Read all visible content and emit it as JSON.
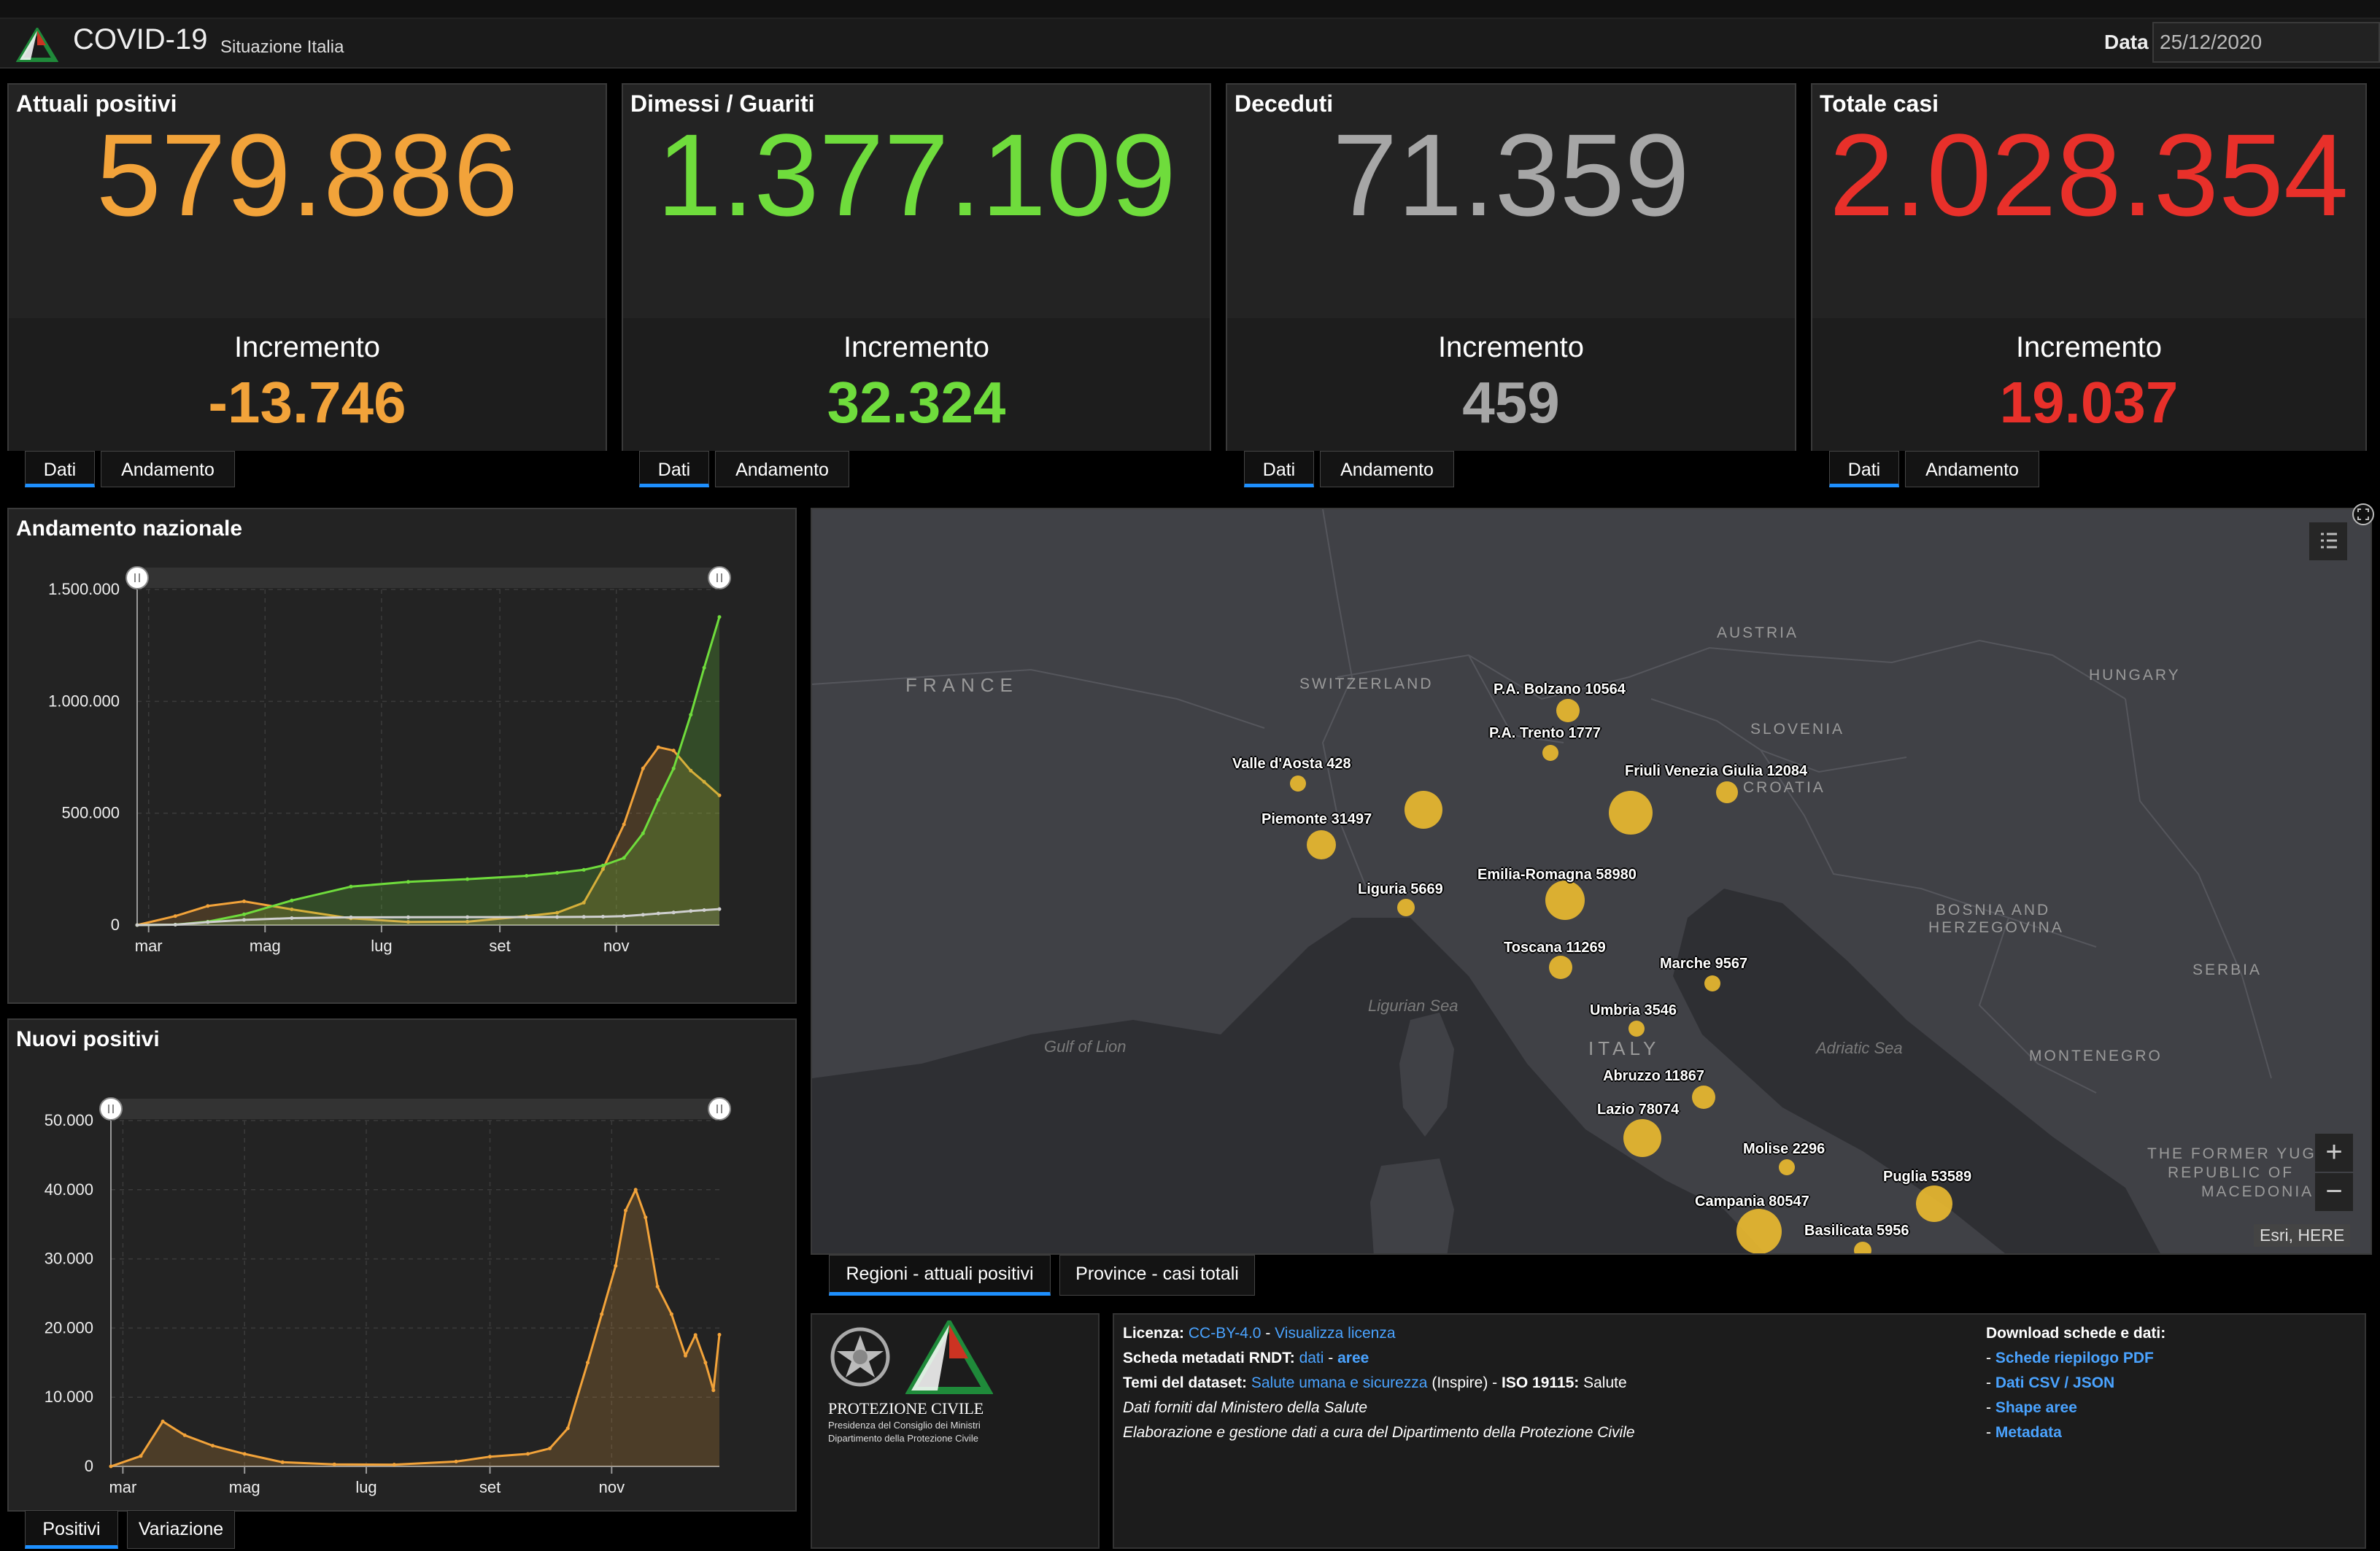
{
  "header": {
    "title": "COVID-19",
    "subtitle": "Situazione Italia",
    "date_label": "Data",
    "date_value": "25/12/2020"
  },
  "kpis": [
    {
      "title": "Attuali positivi",
      "value": "579.886",
      "inc_label": "Incremento",
      "inc_value": "-13.746",
      "color": "#f2a33a"
    },
    {
      "title": "Dimessi / Guariti",
      "value": "1.377.109",
      "inc_label": "Incremento",
      "inc_value": "32.324",
      "color": "#6fdc3c"
    },
    {
      "title": "Deceduti",
      "value": "71.359",
      "inc_label": "Incremento",
      "inc_value": "459",
      "color": "#a6a6a6"
    },
    {
      "title": "Totale casi",
      "value": "2.028.354",
      "inc_label": "Incremento",
      "inc_value": "19.037",
      "color": "#e8302a"
    }
  ],
  "kpi_tabs": [
    "Dati",
    "Andamento"
  ],
  "national_chart": {
    "title": "Andamento nazionale",
    "yticks": [
      "1.500.000",
      "1.000.000",
      "500.000",
      "0"
    ],
    "xticks": [
      "mar",
      "mag",
      "lug",
      "set",
      "nov"
    ]
  },
  "new_chart": {
    "title": "Nuovi positivi",
    "yticks": [
      "50.000",
      "40.000",
      "30.000",
      "20.000",
      "10.000",
      "0"
    ],
    "xticks": [
      "mar",
      "mag",
      "lug",
      "set",
      "nov"
    ],
    "tabs": [
      "Positivi",
      "Variazione"
    ]
  },
  "chart_data": [
    {
      "type": "line",
      "title": "Andamento nazionale",
      "ylim": [
        0,
        1500000
      ],
      "x": [
        "2020-02-24",
        "2020-03-15",
        "2020-04-01",
        "2020-04-20",
        "2020-05-15",
        "2020-06-15",
        "2020-07-15",
        "2020-08-15",
        "2020-09-15",
        "2020-10-01",
        "2020-10-15",
        "2020-10-25",
        "2020-11-05",
        "2020-11-15",
        "2020-11-23",
        "2020-12-01",
        "2020-12-10",
        "2020-12-17",
        "2020-12-25"
      ],
      "series": [
        {
          "color": "#f2a33a",
          "values": [
            0,
            40000,
            85000,
            106000,
            70000,
            30000,
            14000,
            15000,
            40000,
            55000,
            100000,
            250000,
            450000,
            700000,
            795000,
            780000,
            690000,
            640000,
            579886
          ]
        },
        {
          "color": "#6fdc3c",
          "values": [
            0,
            2000,
            15000,
            48000,
            110000,
            172000,
            193000,
            205000,
            220000,
            233000,
            247000,
            266000,
            300000,
            410000,
            560000,
            700000,
            940000,
            1150000,
            1377109
          ]
        },
        {
          "color": "#cfcfcf",
          "values": [
            0,
            1500,
            13000,
            23000,
            31000,
            34500,
            35000,
            35400,
            35700,
            36000,
            36500,
            37500,
            40000,
            46000,
            52000,
            56000,
            63000,
            67000,
            71359
          ]
        }
      ]
    },
    {
      "type": "area",
      "title": "Nuovi positivi",
      "ylim": [
        0,
        50000
      ],
      "x": [
        "2020-02-24",
        "2020-03-10",
        "2020-03-21",
        "2020-04-01",
        "2020-04-15",
        "2020-05-01",
        "2020-05-20",
        "2020-06-15",
        "2020-07-15",
        "2020-08-15",
        "2020-09-01",
        "2020-09-20",
        "2020-10-01",
        "2020-10-10",
        "2020-10-20",
        "2020-10-27",
        "2020-11-03",
        "2020-11-08",
        "2020-11-13",
        "2020-11-18",
        "2020-11-24",
        "2020-12-01",
        "2020-12-08",
        "2020-12-13",
        "2020-12-18",
        "2020-12-22",
        "2020-12-25"
      ],
      "series": [
        {
          "color": "#f2a33a",
          "values": [
            0,
            1500,
            6500,
            4500,
            3000,
            1800,
            600,
            300,
            250,
            700,
            1400,
            1800,
            2600,
            5500,
            15000,
            22000,
            29000,
            37000,
            40000,
            36000,
            26000,
            22000,
            16000,
            19000,
            15000,
            11000,
            19037
          ]
        }
      ]
    }
  ],
  "map": {
    "countries": [
      {
        "name": "FRANCE"
      },
      {
        "name": "SWITZERLAND"
      },
      {
        "name": "AUSTRIA"
      },
      {
        "name": "HUNGARY"
      },
      {
        "name": "SLOVENIA"
      },
      {
        "name": "CROATIA"
      },
      {
        "name": "BOSNIA AND"
      },
      {
        "name": "HERZEGOVINA"
      },
      {
        "name": "SERBIA"
      },
      {
        "name": "MONTENEGRO"
      },
      {
        "name": "ITALY"
      },
      {
        "name": "THE FORMER YUGO"
      },
      {
        "name": "REPUBLIC OF"
      },
      {
        "name": "MACEDONIA"
      }
    ],
    "seas": [
      "Ligurian Sea",
      "Gulf of Lion",
      "Adriatic Sea"
    ],
    "regions": [
      {
        "label": "P.A. Bolzano 10564",
        "value": 10564
      },
      {
        "label": "P.A. Trento 1777",
        "value": 1777
      },
      {
        "label": "Valle d'Aosta 428",
        "value": 428
      },
      {
        "label": "Friuli Venezia Giulia 12084",
        "value": 12084
      },
      {
        "label": "Piemonte 31497",
        "value": 31497
      },
      {
        "label": "Liguria 5669",
        "value": 5669
      },
      {
        "label": "Emilia-Romagna 58980",
        "value": 58980
      },
      {
        "label": "Toscana 11269",
        "value": 11269
      },
      {
        "label": "Marche 9567",
        "value": 9567
      },
      {
        "label": "Umbria 3546",
        "value": 3546
      },
      {
        "label": "Abruzzo 11867",
        "value": 11867
      },
      {
        "label": "Lazio 78074",
        "value": 78074
      },
      {
        "label": "Molise 2296",
        "value": 2296
      },
      {
        "label": "Puglia 53589",
        "value": 53589
      },
      {
        "label": "Campania 80547",
        "value": 80547
      },
      {
        "label": "Basilicata 5956",
        "value": 5956
      }
    ],
    "attribution": "Esri, HERE",
    "zoom_in": "+",
    "zoom_out": "−",
    "tabs": [
      "Regioni - attuali positivi",
      "Province - casi totali"
    ],
    "bubble_color": "#e8b930"
  },
  "logo": {
    "org": "PROTEZIONE CIVILE",
    "sub1": "Presidenza del Consiglio dei Ministri",
    "sub2": "Dipartimento della Protezione Civile"
  },
  "info": {
    "licenza_label": "Licenza:",
    "licenza_link": "CC-BY-4.0",
    "licenza_sep": " - ",
    "licenza_link2": "Visualizza licenza",
    "scheda_label": "Scheda metadati RNDT:",
    "scheda_link1": "dati",
    "scheda_sep": " - ",
    "scheda_link2": "aree",
    "temi_label": "Temi del dataset:",
    "temi_link": "Salute umana e sicurezza",
    "temi_rest": "(Inspire) - ",
    "iso_label": "ISO 19115:",
    "iso_value": "Salute",
    "line4": "Dati forniti dal Ministero della Salute",
    "line5": "Elaborazione e gestione dati a cura del Dipartimento della Protezione Civile",
    "download_title": "Download schede e dati:",
    "downloads": [
      "Schede riepilogo PDF",
      "Dati CSV / JSON",
      "Shape aree",
      "Metadata"
    ]
  }
}
